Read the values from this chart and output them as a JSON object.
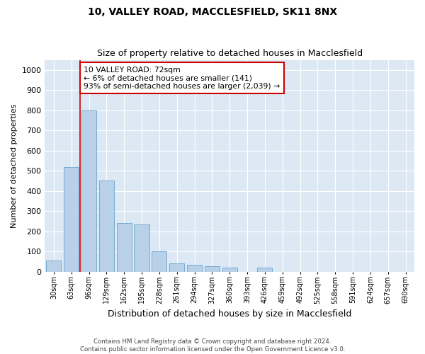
{
  "title1": "10, VALLEY ROAD, MACCLESFIELD, SK11 8NX",
  "title2": "Size of property relative to detached houses in Macclesfield",
  "xlabel": "Distribution of detached houses by size in Macclesfield",
  "ylabel": "Number of detached properties",
  "annotation_line1": "10 VALLEY ROAD: 72sqm",
  "annotation_line2": "← 6% of detached houses are smaller (141)",
  "annotation_line3": "93% of semi-detached houses are larger (2,039) →",
  "footer1": "Contains HM Land Registry data © Crown copyright and database right 2024.",
  "footer2": "Contains public sector information licensed under the Open Government Licence v3.0.",
  "bar_color": "#b8d0e8",
  "bar_edge_color": "#6ba3cc",
  "background_color": "#dce9f5",
  "grid_color": "#ffffff",
  "annotation_box_color": "#ffffff",
  "annotation_box_edge": "#cc0000",
  "vline_color": "#cc0000",
  "vline_x": 1.5,
  "categories": [
    "30sqm",
    "63sqm",
    "96sqm",
    "129sqm",
    "162sqm",
    "195sqm",
    "228sqm",
    "261sqm",
    "294sqm",
    "327sqm",
    "360sqm",
    "393sqm",
    "426sqm",
    "459sqm",
    "492sqm",
    "525sqm",
    "558sqm",
    "591sqm",
    "624sqm",
    "657sqm",
    "690sqm"
  ],
  "values": [
    55,
    520,
    800,
    450,
    240,
    235,
    100,
    40,
    35,
    25,
    20,
    0,
    20,
    0,
    0,
    0,
    0,
    0,
    0,
    0,
    0
  ],
  "ylim": [
    0,
    1050
  ],
  "yticks": [
    0,
    100,
    200,
    300,
    400,
    500,
    600,
    700,
    800,
    900,
    1000
  ]
}
